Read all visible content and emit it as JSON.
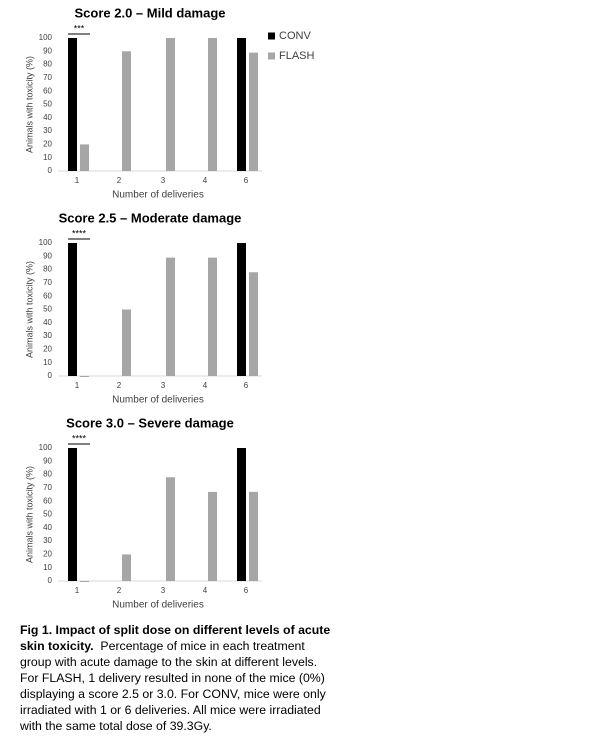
{
  "chart_data": [
    {
      "type": "bar",
      "title": "Score 2.0 – Mild damage",
      "categories": [
        "1",
        "2",
        "3",
        "4",
        "6"
      ],
      "series": [
        {
          "name": "CONV",
          "color": "#000000",
          "values": [
            100,
            null,
            null,
            null,
            100
          ]
        },
        {
          "name": "FLASH",
          "color": "#a6a6a6",
          "values": [
            20,
            90,
            100,
            100,
            89
          ]
        }
      ],
      "x_label": "Number of deliveries",
      "y_label": "Animals with toxicity (%)",
      "ylim": [
        0,
        100
      ],
      "yticks": [
        0,
        10,
        20,
        30,
        40,
        50,
        60,
        70,
        80,
        90,
        100
      ],
      "annotation": "***",
      "legend": "right"
    },
    {
      "type": "bar",
      "title": "Score 2.5 – Moderate damage",
      "categories": [
        "1",
        "2",
        "3",
        "4",
        "6"
      ],
      "series": [
        {
          "color": "#000000",
          "values": [
            100,
            null,
            null,
            null,
            100
          ]
        },
        {
          "color": "#a6a6a6",
          "values": [
            0,
            50,
            89,
            89,
            78
          ]
        }
      ],
      "x_label": "Number of deliveries",
      "y_label": "Animals with toxicity (%)",
      "ylim": [
        0,
        100
      ],
      "yticks": [
        0,
        10,
        20,
        30,
        40,
        50,
        60,
        70,
        80,
        90,
        100
      ],
      "annotation": "****"
    },
    {
      "type": "bar",
      "title": "Score 3.0 – Severe damage",
      "categories": [
        "1",
        "2",
        "3",
        "4",
        "6"
      ],
      "series": [
        {
          "color": "#000000",
          "values": [
            100,
            null,
            null,
            null,
            100
          ]
        },
        {
          "color": "#a6a6a6",
          "values": [
            0,
            20,
            78,
            67,
            67
          ]
        }
      ],
      "x_label": "Number of deliveries",
      "y_label": "Animals with toxicity (%)",
      "ylim": [
        0,
        100
      ],
      "yticks": [
        0,
        10,
        20,
        30,
        40,
        50,
        60,
        70,
        80,
        90,
        100
      ],
      "annotation": "****"
    }
  ],
  "caption": {
    "title": "Fig 1. Impact of split dose on different levels of acute skin toxicity.",
    "text": "Percentage of mice in each treatment group with acute damage to the skin at different levels. For FLASH, 1 delivery resulted in none of the mice (0%) displaying a score 2.5 or 3.0. For CONV, mice were only irradiated with 1 or 6 deliveries. All mice were irradiated with the same total dose of 39.3Gy."
  }
}
